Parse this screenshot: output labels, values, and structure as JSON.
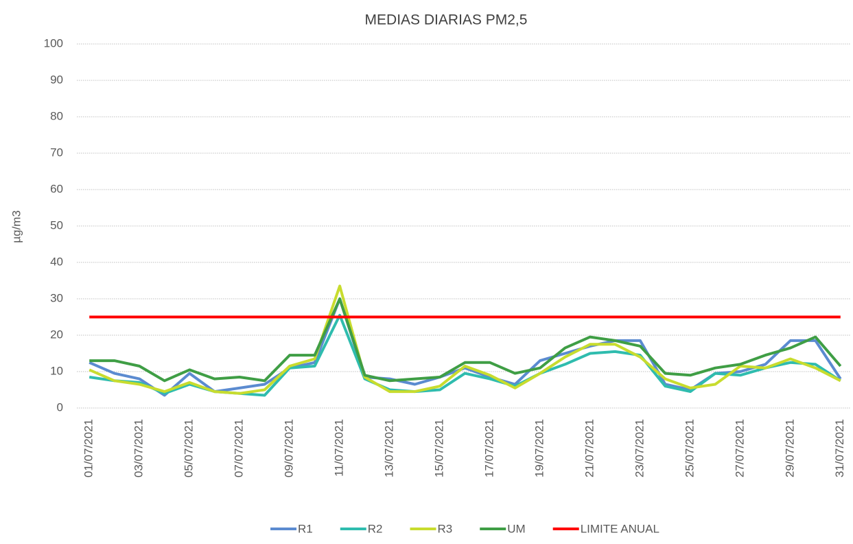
{
  "chart_data": {
    "type": "line",
    "title": "MEDIAS DIARIAS PM2,5",
    "ylabel": "µg/m3",
    "categories": [
      "01/07/2021",
      null,
      "03/07/2021",
      null,
      "05/07/2021",
      null,
      "07/07/2021",
      null,
      "09/07/2021",
      null,
      "11/07/2021",
      null,
      "13/07/2021",
      null,
      "15/07/2021",
      null,
      "17/07/2021",
      null,
      "19/07/2021",
      null,
      "21/07/2021",
      null,
      "23/07/2021",
      null,
      "25/07/2021",
      null,
      "27/07/2021",
      null,
      "29/07/2021",
      null,
      "31/07/2021"
    ],
    "series": [
      {
        "name": "R1",
        "color": "#5b8bd0",
        "values": [
          12.5,
          9.5,
          8,
          3.5,
          9.5,
          4.5,
          5.5,
          6.5,
          11,
          12.5,
          30,
          8.5,
          8,
          6.5,
          8.5,
          11,
          8.5,
          6.5,
          13,
          15,
          17,
          18.5,
          18.5,
          6.5,
          5,
          9.5,
          10,
          12,
          18.5,
          18.5,
          8
        ]
      },
      {
        "name": "R2",
        "color": "#2fbcae",
        "values": [
          8.5,
          7.5,
          7,
          4,
          6.5,
          4.5,
          4,
          3.5,
          11,
          11.5,
          25.5,
          8,
          5,
          4.5,
          5,
          9.5,
          8,
          6,
          9.5,
          12,
          15,
          15.5,
          14.5,
          6,
          4.5,
          9.5,
          9,
          11,
          12.5,
          12,
          7.5
        ]
      },
      {
        "name": "R3",
        "color": "#c8dc2e",
        "values": [
          10.5,
          7.5,
          6.5,
          4.5,
          7,
          4.5,
          4,
          5,
          11.5,
          13.5,
          33.5,
          8.5,
          4.5,
          4.5,
          6,
          11.5,
          9,
          5.5,
          9.5,
          14,
          17.5,
          17.5,
          14,
          8,
          5.5,
          6.5,
          11.5,
          11,
          13.5,
          11,
          7.5
        ]
      },
      {
        "name": "UM",
        "color": "#3f9e45",
        "values": [
          13,
          13,
          11.5,
          7.5,
          10.5,
          8,
          8.5,
          7.5,
          14.5,
          14.5,
          30,
          9,
          7.5,
          8,
          8.5,
          12.5,
          12.5,
          9.5,
          11,
          16.5,
          19.5,
          18.5,
          17,
          9.5,
          9,
          11,
          12,
          14.5,
          16.5,
          19.5,
          11.5
        ]
      },
      {
        "name": "LIMITE ANUAL",
        "color": "#ff0000",
        "values": [
          25,
          25,
          25,
          25,
          25,
          25,
          25,
          25,
          25,
          25,
          25,
          25,
          25,
          25,
          25,
          25,
          25,
          25,
          25,
          25,
          25,
          25,
          25,
          25,
          25,
          25,
          25,
          25,
          25,
          25,
          25
        ]
      }
    ],
    "ylim": [
      0,
      100
    ],
    "yticks": [
      0,
      10,
      20,
      30,
      40,
      50,
      60,
      70,
      80,
      90,
      100
    ],
    "grid": true,
    "legend": "bottom"
  }
}
